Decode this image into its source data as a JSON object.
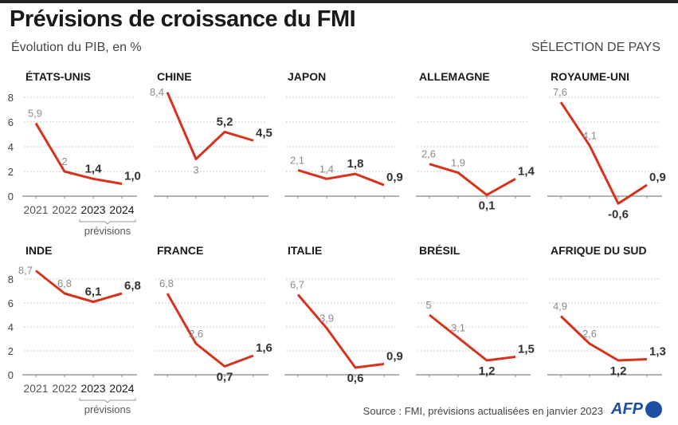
{
  "title": "Prévisions de croissance du FMI",
  "subtitle": "Évolution du PIB, en %",
  "selection_label": "SÉLECTION DE PAYS",
  "source": "Source : FMI, prévisions actualisées en janvier 2023",
  "logo": "AFP",
  "colors": {
    "line": "#d6321c",
    "past_label": "#8a8a8a",
    "forecast_label": "#333333"
  },
  "chart_data": {
    "type": "line",
    "categories": [
      "2021",
      "2022",
      "2023",
      "2024"
    ],
    "forecast_categories": [
      "2023",
      "2024"
    ],
    "forecast_label": "prévisions",
    "ylim": [
      -1,
      8
    ],
    "yticks": [
      0,
      2,
      4,
      6,
      8
    ],
    "grid": true,
    "panels": [
      {
        "name": "ÉTATS-UNIS",
        "values": [
          5.9,
          2,
          1.4,
          1.0
        ],
        "labels": [
          "5,9",
          "2",
          "1,4",
          "1,0"
        ]
      },
      {
        "name": "CHINE",
        "values": [
          8.4,
          3,
          5.2,
          4.5
        ],
        "labels": [
          "8,4",
          "3",
          "5,2",
          "4,5"
        ]
      },
      {
        "name": "JAPON",
        "values": [
          2.1,
          1.4,
          1.8,
          0.9
        ],
        "labels": [
          "2,1",
          "1,4",
          "1,8",
          "0,9"
        ]
      },
      {
        "name": "ALLEMAGNE",
        "values": [
          2.6,
          1.9,
          0.1,
          1.4
        ],
        "labels": [
          "2,6",
          "1,9",
          "0,1",
          "1,4"
        ]
      },
      {
        "name": "ROYAUME-UNI",
        "values": [
          7.6,
          4.1,
          -0.6,
          0.9
        ],
        "labels": [
          "7,6",
          "4,1",
          "-0,6",
          "0,9"
        ]
      },
      {
        "name": "INDE",
        "values": [
          8.7,
          6.8,
          6.1,
          6.8
        ],
        "labels": [
          "8,7",
          "6,8",
          "6,1",
          "6,8"
        ]
      },
      {
        "name": "FRANCE",
        "values": [
          6.8,
          2.6,
          0.7,
          1.6
        ],
        "labels": [
          "6,8",
          "2,6",
          "0,7",
          "1,6"
        ]
      },
      {
        "name": "ITALIE",
        "values": [
          6.7,
          3.9,
          0.6,
          0.9
        ],
        "labels": [
          "6,7",
          "3,9",
          "0,6",
          "0,9"
        ]
      },
      {
        "name": "BRÉSIL",
        "values": [
          5,
          3.1,
          1.2,
          1.5
        ],
        "labels": [
          "5",
          "3,1",
          "1,2",
          "1,5"
        ]
      },
      {
        "name": "AFRIQUE DU SUD",
        "values": [
          4.9,
          2.6,
          1.2,
          1.3
        ],
        "labels": [
          "4,9",
          "2,6",
          "1,2",
          "1,3"
        ]
      }
    ]
  }
}
